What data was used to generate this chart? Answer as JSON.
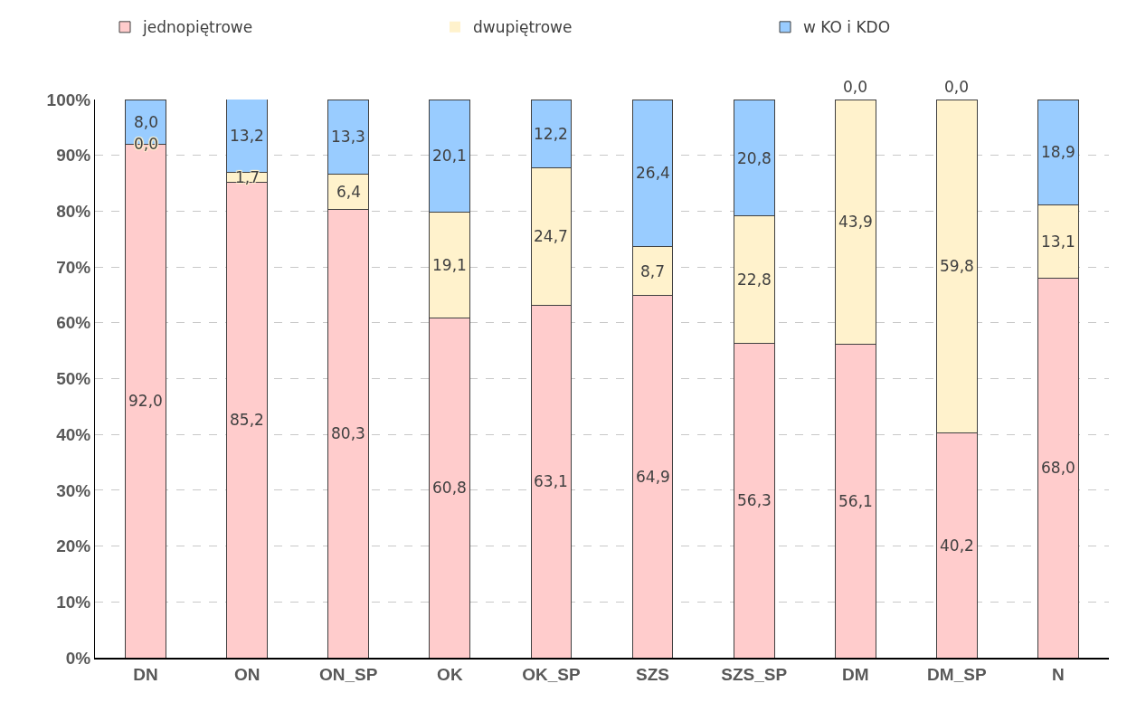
{
  "chart_data": {
    "type": "bar",
    "stacked": true,
    "categories": [
      "DN",
      "ON",
      "ON_SP",
      "OK",
      "OK_SP",
      "SZS",
      "SZS_SP",
      "DM",
      "DM_SP",
      "N"
    ],
    "series": [
      {
        "name": "jednopiętrowe",
        "color": "#ffcccc",
        "values": [
          92.0,
          85.2,
          80.3,
          60.8,
          63.1,
          64.9,
          56.3,
          56.1,
          40.2,
          68.0
        ],
        "value_labels": [
          "92,0",
          "85,2",
          "80,3",
          "60,8",
          "63,1",
          "64,9",
          "56,3",
          "56,1",
          "40,2",
          "68,0"
        ]
      },
      {
        "name": "dwupiętrowe",
        "color": "#fff2cc",
        "values": [
          0.0,
          1.7,
          6.4,
          19.1,
          24.7,
          8.7,
          22.8,
          43.9,
          59.8,
          13.1
        ],
        "value_labels": [
          "0,0",
          "1,7",
          "6,4",
          "19,1",
          "24,7",
          "8,7",
          "22,8",
          "43,9",
          "59,8",
          "13,1"
        ]
      },
      {
        "name": "w KO i KDO",
        "color": "#99ccff",
        "values": [
          8.0,
          13.2,
          13.3,
          20.1,
          12.2,
          26.4,
          20.8,
          0.0,
          0.0,
          18.9
        ],
        "value_labels": [
          "8,0",
          "13,2",
          "13,3",
          "20,1",
          "12,2",
          "26,4",
          "20,8",
          "0,0",
          "0,0",
          "18,9"
        ]
      }
    ],
    "ylim": [
      0,
      100
    ],
    "yticks": [
      {
        "value": 0,
        "label": "0%"
      },
      {
        "value": 10,
        "label": "10%"
      },
      {
        "value": 20,
        "label": "20%"
      },
      {
        "value": 30,
        "label": "30%"
      },
      {
        "value": 40,
        "label": "40%"
      },
      {
        "value": 50,
        "label": "50%"
      },
      {
        "value": 60,
        "label": "60%"
      },
      {
        "value": 70,
        "label": "70%"
      },
      {
        "value": 80,
        "label": "80%"
      },
      {
        "value": 90,
        "label": "90%"
      },
      {
        "value": 100,
        "label": "100%"
      }
    ],
    "grid": "y",
    "legend": "top"
  }
}
